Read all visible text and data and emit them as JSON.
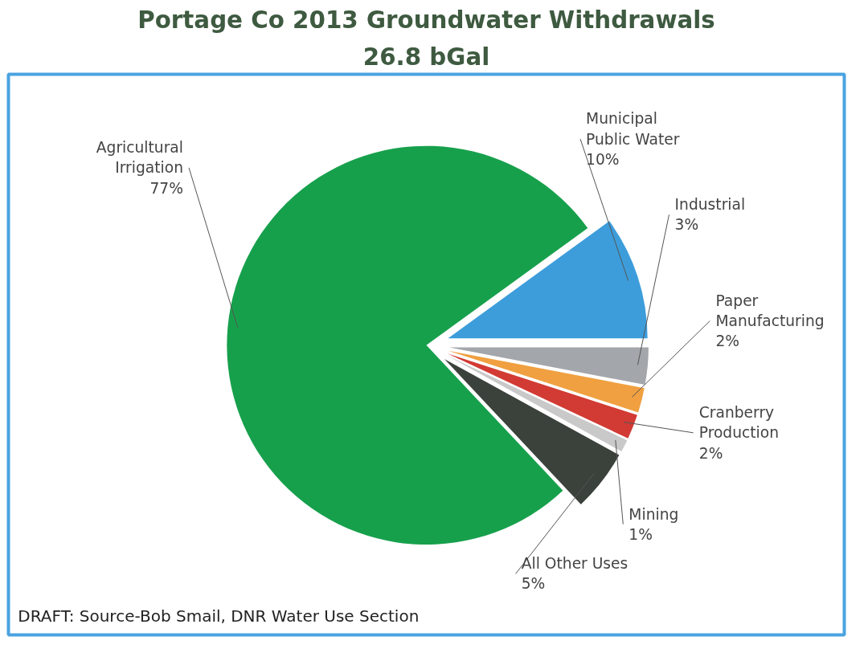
{
  "chart_data": {
    "type": "pie",
    "title": "Portage Co 2013 Groundwater Withdrawals",
    "subtitle": "26.8 bGal",
    "categories": [
      "Municipal Public Water",
      "Industrial",
      "Paper Manufacturing",
      "Cranberry Production",
      "Mining",
      "All Other Uses",
      "Agricultural Irrigation"
    ],
    "values": [
      10,
      3,
      2,
      2,
      1,
      5,
      77
    ],
    "colors": [
      "#3d9ddb",
      "#a3a6aa",
      "#f0a040",
      "#d23a34",
      "#c9c9c9",
      "#3b413b",
      "#17a04c"
    ],
    "value_labels": [
      "10%",
      "3%",
      "2%",
      "2%",
      "1%",
      "5%",
      "77%"
    ],
    "annotations": [
      "DRAFT: Source-Bob Smail, DNR Water Use Section"
    ]
  }
}
